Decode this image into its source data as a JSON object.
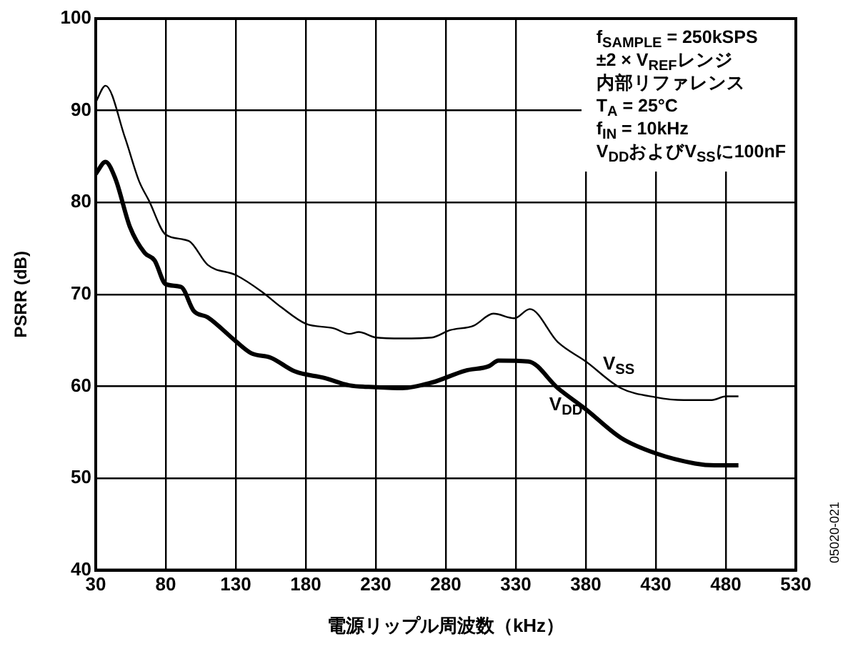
{
  "chart_data": {
    "type": "line",
    "xlabel": "電源リップル周波数（kHz）",
    "ylabel": "PSRR (dB)",
    "xlim": [
      30,
      530
    ],
    "xticks": [
      30,
      80,
      130,
      180,
      230,
      280,
      330,
      380,
      430,
      480,
      530
    ],
    "ylim": [
      40,
      100
    ],
    "yticks": [
      40,
      50,
      60,
      70,
      80,
      90,
      100
    ],
    "grid": true,
    "legend": false,
    "marker": "none",
    "line_style": "solid",
    "series": [
      {
        "name": "V$_{SS}$",
        "color": "#000000",
        "x": [
          30,
          37,
          51,
          61,
          68,
          80,
          96.5,
          110,
          130,
          148.5,
          162.5,
          180,
          200,
          211,
          218,
          230,
          249,
          270,
          283,
          300,
          314,
          329,
          340,
          360,
          380,
          405,
          430,
          450,
          470,
          480,
          489
        ],
        "values": [
          90.9,
          92.7,
          87,
          82.3,
          80.2,
          76.5,
          75.8,
          73.2,
          72.1,
          70.3,
          68.6,
          66.8,
          66.3,
          65.7,
          65.9,
          65.3,
          65.2,
          65.3,
          66.1,
          66.6,
          67.9,
          67.4,
          68.4,
          64.8,
          62.7,
          59.8,
          58.8,
          58.5,
          58.5,
          58.9,
          58.9
        ]
      },
      {
        "name": "V$_{DD}$",
        "color": "#000000",
        "x": [
          30,
          37,
          44,
          54.5,
          65,
          72,
          80,
          91,
          100,
          110,
          130,
          141,
          155,
          172.5,
          193.5,
          211,
          230,
          249,
          270,
          294,
          311,
          317.5,
          339,
          360,
          380,
          405,
          430,
          458,
          472,
          489
        ],
        "values": [
          83.1,
          84.4,
          82.6,
          77.3,
          74.5,
          73.7,
          71.1,
          70.8,
          68.2,
          67.5,
          64.9,
          63.6,
          63.1,
          61.6,
          60.9,
          60.1,
          59.9,
          59.8,
          60.4,
          61.7,
          62.2,
          62.8,
          62.7,
          59.8,
          57.5,
          54.4,
          52.7,
          51.6,
          51.4,
          51.4
        ]
      }
    ],
    "annotations": [
      "f$_{SAMPLE}$ = 250kSPS",
      "±2 × V$_{REF}$レンジ",
      "内部リファレンス",
      "T$_{A}$ = 25°C",
      "f$_{IN}$ = 10kHz",
      "V$_{DD}$およびV$_{SS}$に100nF",
      "05020-021"
    ]
  }
}
